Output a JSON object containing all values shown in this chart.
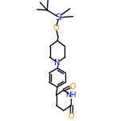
{
  "bg_color": "#ffffff",
  "bond_color": "#000000",
  "N_color": "#0000dd",
  "O_color": "#ff8800",
  "Si_color": "#0000dd",
  "lw": 1.0,
  "figsize": [
    1.52,
    1.52
  ],
  "dpi": 100,
  "xlim": [
    0,
    152
  ],
  "ylim": [
    0,
    152
  ]
}
